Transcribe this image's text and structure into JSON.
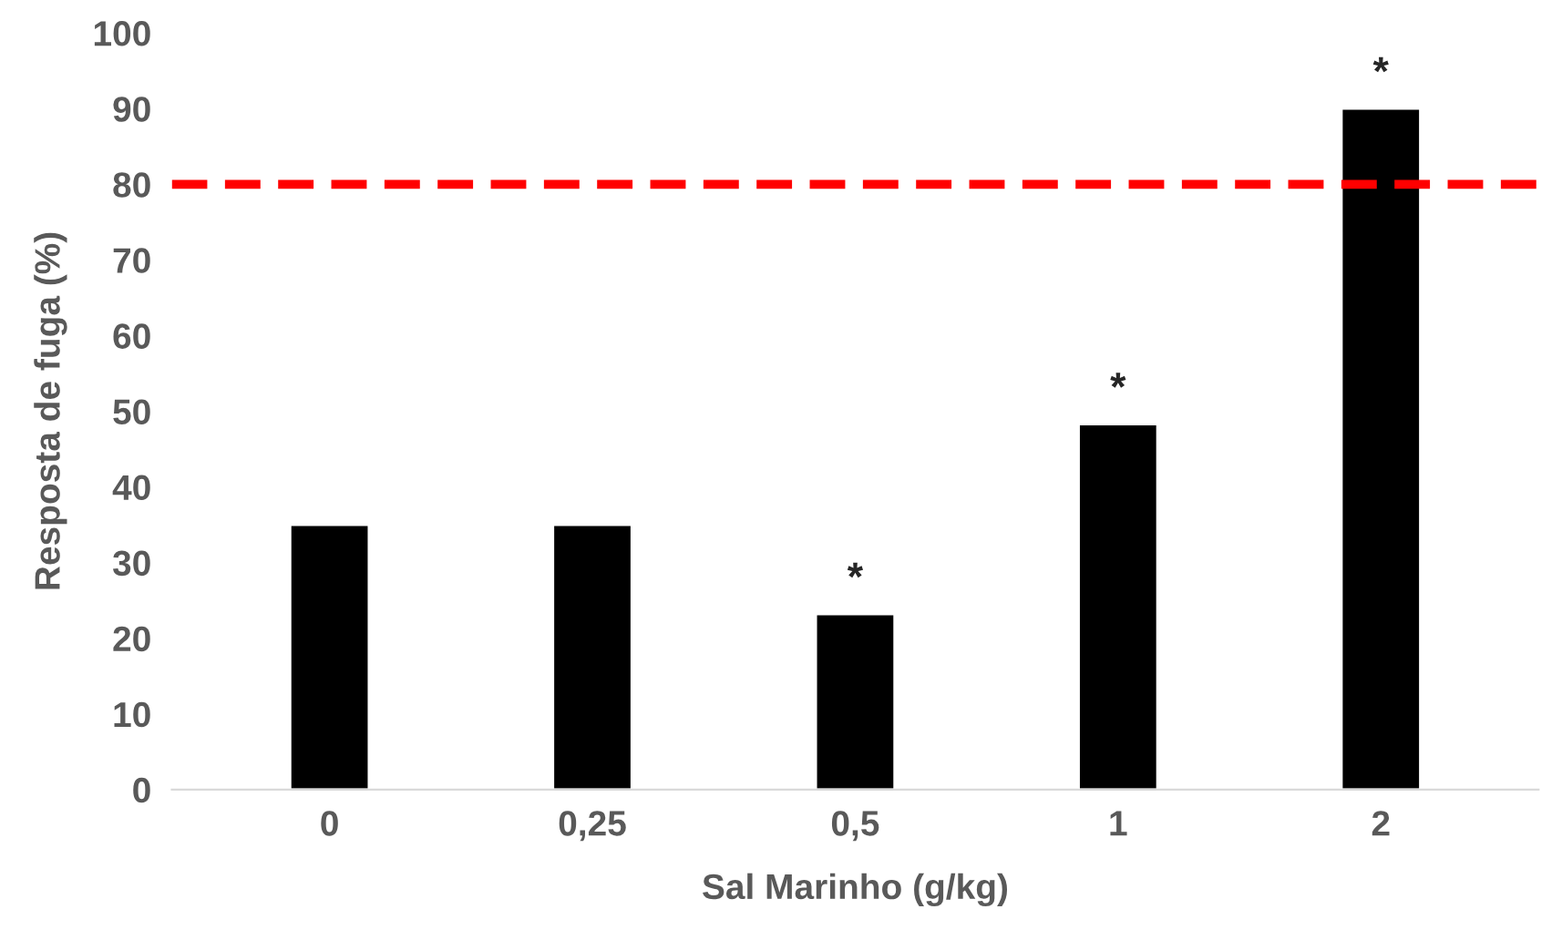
{
  "chart_data": {
    "type": "bar",
    "xlabel": "Sal Marinho (g/kg)",
    "ylabel": "Resposta de fuga (%)",
    "categories": [
      "0",
      "0,25",
      "0,5",
      "1",
      "2"
    ],
    "values": [
      35,
      35,
      23.2,
      48.3,
      90
    ],
    "color": "#000000",
    "ylim": [
      0,
      100
    ],
    "yticks": [
      0,
      10,
      20,
      30,
      40,
      50,
      60,
      70,
      80,
      90,
      100
    ],
    "grid": false,
    "ref_lines": [
      {
        "axis": "y",
        "value": 80,
        "color": "#ff0000",
        "line_style": "dashed"
      }
    ],
    "annotations": [
      {
        "text": "*",
        "x": "0,5",
        "y": 23.2
      },
      {
        "text": "*",
        "x": "1",
        "y": 48.3
      },
      {
        "text": "*",
        "x": "2",
        "y": 90
      }
    ]
  }
}
